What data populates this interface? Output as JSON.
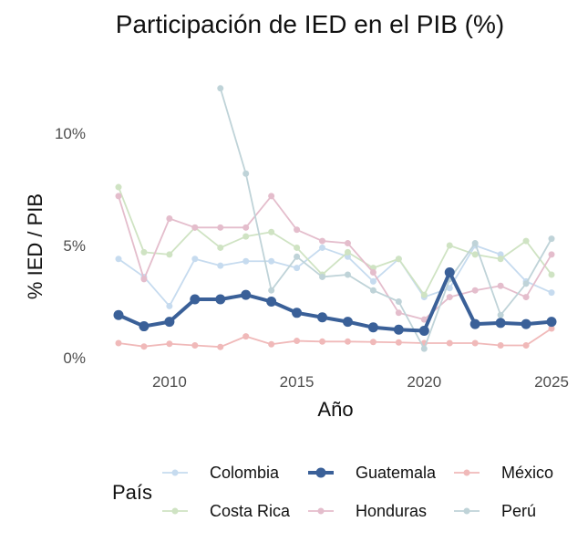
{
  "chart_data": {
    "type": "line",
    "title": "Participación de IED en el PIB (%)",
    "xlabel": "Año",
    "ylabel": "% IED / PIB",
    "x": [
      2008,
      2009,
      2010,
      2011,
      2012,
      2013,
      2014,
      2015,
      2016,
      2017,
      2018,
      2019,
      2020,
      2021,
      2022,
      2023,
      2024,
      2025
    ],
    "xticks": [
      2010,
      2015,
      2020,
      2025
    ],
    "xtick_labels": [
      "2010",
      "2015",
      "2020",
      "2025"
    ],
    "yticks": [
      0,
      5,
      10
    ],
    "ytick_labels": [
      "0%",
      "5%",
      "10%"
    ],
    "xlim": [
      2007.6,
      2025.4
    ],
    "ylim": [
      -0.4,
      12.4
    ],
    "grid": false,
    "legend": {
      "title": "País",
      "placement": "bottom"
    },
    "series": [
      {
        "name": "Colombia",
        "color": "#c6dbef",
        "highlight": false,
        "values": [
          4.4,
          3.6,
          2.3,
          4.4,
          4.1,
          4.3,
          4.3,
          4.0,
          4.9,
          4.5,
          3.4,
          4.4,
          2.7,
          3.1,
          5.0,
          4.6,
          3.4,
          2.9
        ]
      },
      {
        "name": "Guatemala",
        "color": "#3a6098",
        "highlight": true,
        "values": [
          1.9,
          1.4,
          1.6,
          2.6,
          2.6,
          2.8,
          2.5,
          2.0,
          1.8,
          1.6,
          1.35,
          1.25,
          1.2,
          3.8,
          1.5,
          1.55,
          1.5,
          1.6
        ]
      },
      {
        "name": "México",
        "color": "#f0b9b9",
        "highlight": false,
        "values": [
          0.65,
          0.5,
          0.62,
          0.55,
          0.48,
          0.95,
          0.6,
          0.75,
          0.72,
          0.72,
          0.7,
          0.68,
          0.65,
          0.65,
          0.65,
          0.55,
          0.55,
          1.3
        ]
      },
      {
        "name": "Costa Rica",
        "color": "#cfe3c3",
        "highlight": false,
        "values": [
          7.6,
          4.7,
          4.6,
          5.8,
          4.9,
          5.4,
          5.6,
          4.9,
          3.7,
          4.7,
          4.0,
          4.4,
          2.8,
          5.0,
          4.6,
          4.4,
          5.2,
          3.7
        ]
      },
      {
        "name": "Honduras",
        "color": "#e4bdcc",
        "highlight": false,
        "values": [
          7.2,
          3.5,
          6.2,
          5.8,
          5.8,
          5.8,
          7.2,
          5.7,
          5.2,
          5.1,
          3.8,
          2.0,
          1.7,
          2.7,
          3.0,
          3.2,
          2.7,
          4.6
        ]
      },
      {
        "name": "Perú",
        "color": "#bfd3d8",
        "highlight": false,
        "values": [
          null,
          null,
          null,
          null,
          12.0,
          8.2,
          3.0,
          4.5,
          3.6,
          3.7,
          3.0,
          2.5,
          0.4,
          3.5,
          5.1,
          1.9,
          3.3,
          5.3
        ]
      }
    ]
  }
}
